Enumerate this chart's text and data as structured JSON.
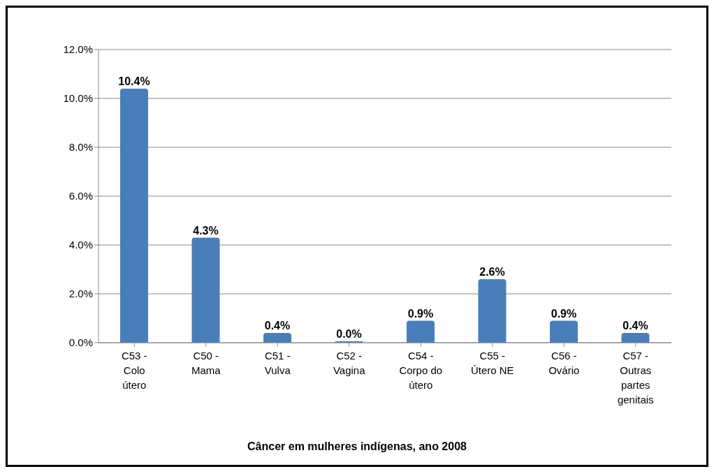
{
  "chart_data": {
    "type": "bar",
    "xlabel": "Câncer em mulheres indígenas,  ano 2008",
    "categories": [
      "C53 - Colo útero",
      "C50 - Mama",
      "C51 - Vulva",
      "C52 - Vagina",
      "C54 - Corpo do útero",
      "C55 - Útero NE",
      "C56 - Ovário",
      "C57 - Outras partes genitais"
    ],
    "values": [
      10.4,
      4.3,
      0.4,
      0.0,
      0.9,
      2.6,
      0.9,
      0.4
    ],
    "value_labels": [
      "10.4%",
      "4.3%",
      "0.4%",
      "0.0%",
      "0.9%",
      "2.6%",
      "0.9%",
      "0.4%"
    ],
    "color": "#4a7ebb",
    "ylim": [
      0,
      12
    ],
    "yticks": [
      {
        "value": 0,
        "label": "0.0%"
      },
      {
        "value": 2,
        "label": "2.0%"
      },
      {
        "value": 4,
        "label": "4.0%"
      },
      {
        "value": 6,
        "label": "6.0%"
      },
      {
        "value": 8,
        "label": "8.0%"
      },
      {
        "value": 10,
        "label": "10.0%"
      },
      {
        "value": 12,
        "label": "12.0%"
      }
    ],
    "grid": "y"
  }
}
